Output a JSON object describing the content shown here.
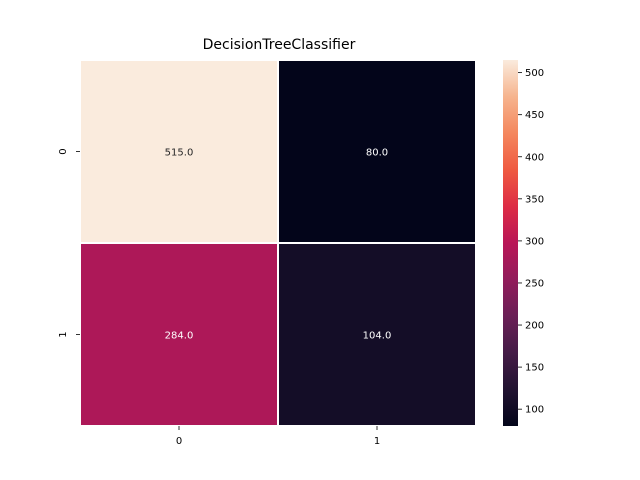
{
  "chart_data": {
    "type": "heatmap",
    "title": "DecisionTreeClassifier",
    "xlabel": "",
    "ylabel": "",
    "x_categories": [
      "0",
      "1"
    ],
    "y_categories": [
      "0",
      "1"
    ],
    "values": [
      [
        515.0,
        80.0
      ],
      [
        284.0,
        104.0
      ]
    ],
    "cell_labels": [
      [
        "515.0",
        "80.0"
      ],
      [
        "284.0",
        "104.0"
      ]
    ],
    "colormap": "rocket",
    "colorbar": {
      "range": [
        80,
        515
      ],
      "ticks": [
        100,
        150,
        200,
        250,
        300,
        350,
        400,
        450,
        500
      ]
    },
    "grid": false,
    "cell_separator_color": "#ffffff"
  }
}
